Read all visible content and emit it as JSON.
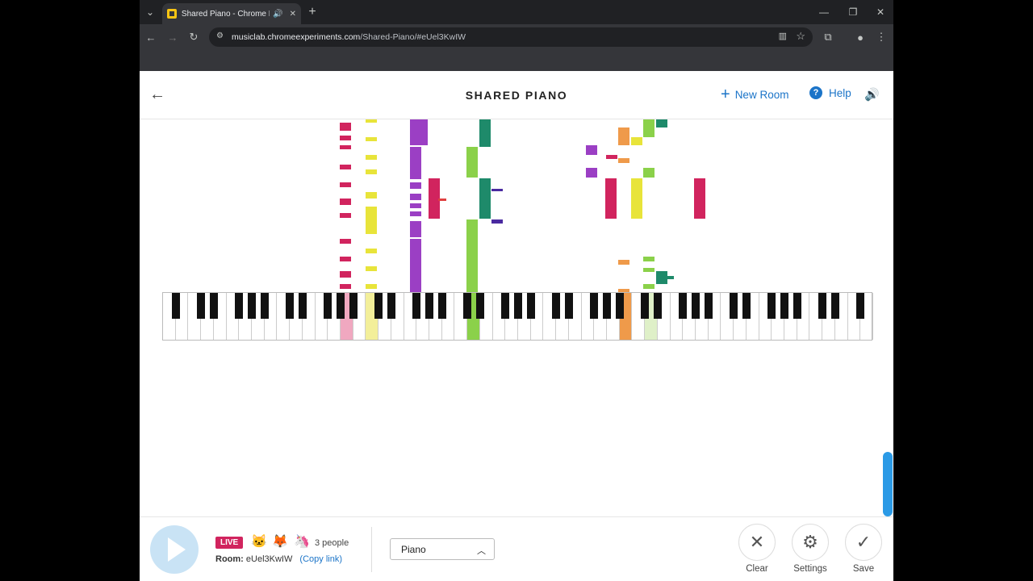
{
  "browser": {
    "tab_title": "Shared Piano - Chrome Mu",
    "url_host": "musiclab.chromeexperiments.com",
    "url_path": "/Shared-Piano/#eUel3KwIW",
    "new_tab": "+",
    "close_tab": "✕",
    "minimize": "—",
    "restore": "❐",
    "close_window": "✕"
  },
  "header": {
    "title": "SHARED PIANO",
    "new_room_label": "New Room",
    "help_label": "Help"
  },
  "icons": {
    "back": "arrow-left-icon",
    "speaker": "speaker-icon",
    "play": "play-icon",
    "clear": "x-icon",
    "settings": "gear-icon",
    "save": "checkmark-icon"
  },
  "colors": {
    "accent": "#1b74c8",
    "live": "#d1245e",
    "play_bg": "#c9e3f5",
    "scrollbar": "#2b9ae6"
  },
  "footer": {
    "live_label": "LIVE",
    "people_count": "3 people",
    "room_label": "Room:",
    "room_id": "eUel3KwIW",
    "copy_link": "(Copy link)",
    "instrument": "Piano",
    "clear_label": "Clear",
    "settings_label": "Settings",
    "save_label": "Save",
    "avatars": [
      "cat-avatar",
      "fox-avatar",
      "unicorn-avatar"
    ]
  }
}
